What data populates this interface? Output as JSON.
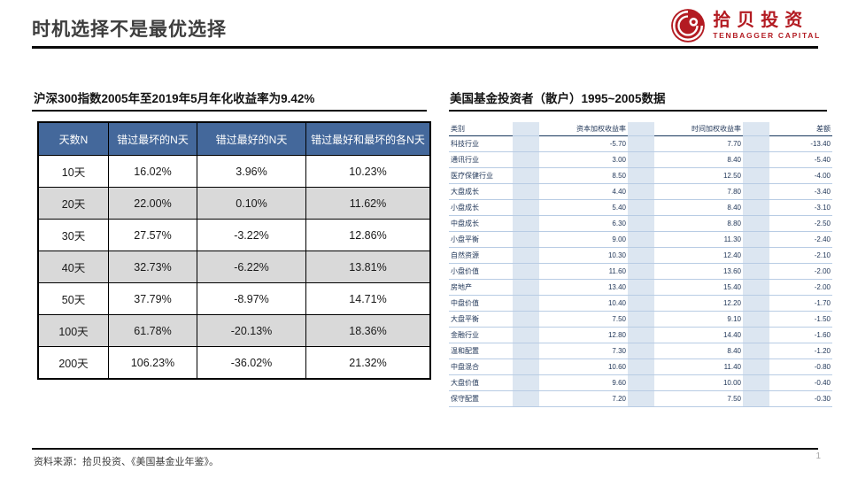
{
  "slide": {
    "title": "时机选择不是最优选择",
    "page_number": "1",
    "footer_source": "资料来源：拾贝投资、《美国基金业年鉴》。"
  },
  "logo": {
    "name_cn": "拾贝投资",
    "name_en": "TENBAGGER CAPITAL",
    "brand_color": "#B31B22"
  },
  "left_section": {
    "title": "沪深300指数2005年至2019年5月年化收益率为9.42%",
    "table": {
      "header_bg_color": "#44689B",
      "alt_row_color": "#D9D9D9",
      "headers": [
        "天数N",
        "错过最坏的N天",
        "错过最好的N天",
        "错过最好和最坏的各N天"
      ],
      "rows": [
        [
          "10天",
          "16.02%",
          "3.96%",
          "10.23%"
        ],
        [
          "20天",
          "22.00%",
          "0.10%",
          "11.62%"
        ],
        [
          "30天",
          "27.57%",
          "-3.22%",
          "12.86%"
        ],
        [
          "40天",
          "32.73%",
          "-6.22%",
          "13.81%"
        ],
        [
          "50天",
          "37.79%",
          "-8.97%",
          "14.71%"
        ],
        [
          "100天",
          "61.78%",
          "-20.13%",
          "18.36%"
        ],
        [
          "200天",
          "106.23%",
          "-36.02%",
          "21.32%"
        ]
      ]
    }
  },
  "right_section": {
    "title": "美国基金投资者（散户）1995~2005数据",
    "table": {
      "spacer_color": "#DCE6F1",
      "gridline_color": "#B8CCE4",
      "headers": [
        "类别",
        "资本加权收益率",
        "时间加权收益率",
        "差额"
      ],
      "rows": [
        [
          "科技行业",
          "-5.70",
          "7.70",
          "-13.40"
        ],
        [
          "通讯行业",
          "3.00",
          "8.40",
          "-5.40"
        ],
        [
          "医疗保健行业",
          "8.50",
          "12.50",
          "-4.00"
        ],
        [
          "大盘成长",
          "4.40",
          "7.80",
          "-3.40"
        ],
        [
          "小盘成长",
          "5.40",
          "8.40",
          "-3.10"
        ],
        [
          "中盘成长",
          "6.30",
          "8.80",
          "-2.50"
        ],
        [
          "小盘平衡",
          "9.00",
          "11.30",
          "-2.40"
        ],
        [
          "自然资源",
          "10.30",
          "12.40",
          "-2.10"
        ],
        [
          "小盘价值",
          "11.60",
          "13.60",
          "-2.00"
        ],
        [
          "房地产",
          "13.40",
          "15.40",
          "-2.00"
        ],
        [
          "中盘价值",
          "10.40",
          "12.20",
          "-1.70"
        ],
        [
          "大盘平衡",
          "7.50",
          "9.10",
          "-1.50"
        ],
        [
          "金融行业",
          "12.80",
          "14.40",
          "-1.60"
        ],
        [
          "温和配置",
          "7.30",
          "8.40",
          "-1.20"
        ],
        [
          "中盘混合",
          "10.60",
          "11.40",
          "-0.80"
        ],
        [
          "大盘价值",
          "9.60",
          "10.00",
          "-0.40"
        ],
        [
          "保守配置",
          "7.20",
          "7.50",
          "-0.30"
        ]
      ]
    }
  }
}
